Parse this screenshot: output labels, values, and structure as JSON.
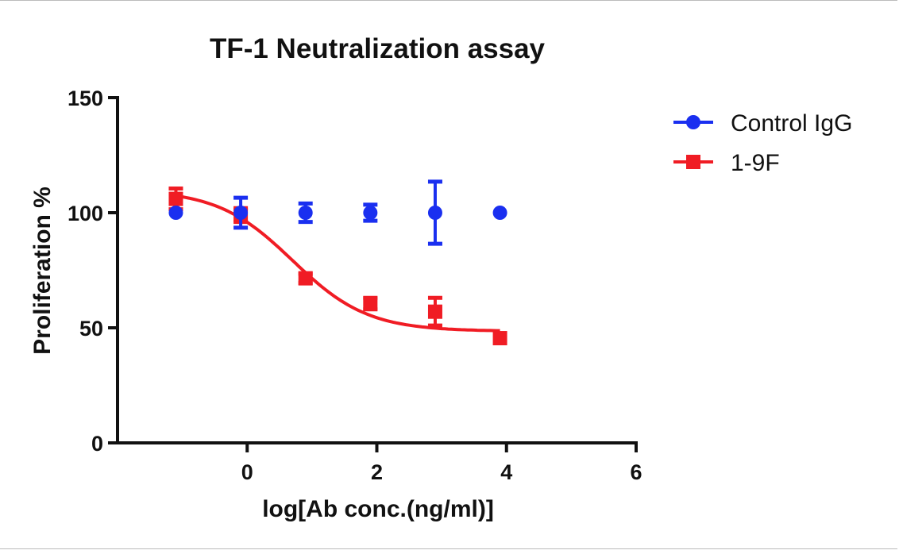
{
  "chart_data": {
    "type": "scatter",
    "title": "TF-1 Neutralization assay",
    "xlabel": "log[Ab conc.(ng/ml)]",
    "ylabel": "Proliferation %",
    "xlim": [
      -2,
      6
    ],
    "ylim": [
      0,
      150
    ],
    "xticks": [
      0,
      2,
      4,
      6
    ],
    "yticks": [
      0,
      50,
      100,
      150
    ],
    "grid": false,
    "legend_position": "top-right",
    "series": [
      {
        "name": "Control IgG",
        "color": "#1a2ff0",
        "marker": "circle",
        "x": [
          -1.1,
          -0.1,
          0.9,
          1.9,
          2.9,
          3.9
        ],
        "y": [
          100,
          100,
          100,
          100,
          100,
          100
        ],
        "error": [
          0,
          6.5,
          4,
          3.5,
          13.5,
          0
        ]
      },
      {
        "name": " 1-9F",
        "color": "#f01c24",
        "marker": "square",
        "x": [
          -1.1,
          -0.1,
          0.9,
          1.9,
          2.9,
          3.9
        ],
        "y": [
          106,
          99,
          71.5,
          60.5,
          57,
          45.5
        ],
        "error": [
          4.5,
          3,
          2,
          2.5,
          6,
          0
        ],
        "fit": {
          "model": "sigmoidal dose-response",
          "top": 110,
          "bottom": 48.5,
          "logIC50": 0.7,
          "hill_slope": -0.75,
          "x_range": [
            -1.1,
            3.9
          ]
        }
      }
    ]
  }
}
